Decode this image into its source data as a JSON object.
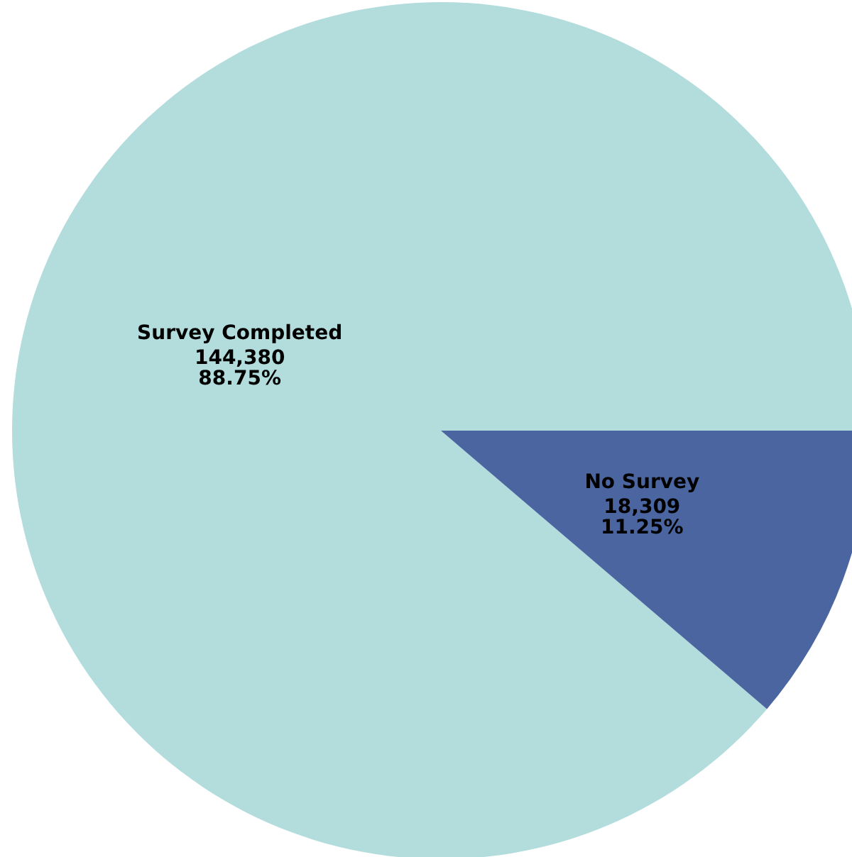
{
  "chart_data": {
    "type": "pie",
    "categories": [
      "Survey Completed",
      "No Survey"
    ],
    "values": [
      144380,
      18309
    ],
    "colors": [
      "#b3dcdd",
      "#4a65a0"
    ],
    "value_labels": [
      "144,380\n88.75%",
      "18,309\n11.25%"
    ],
    "legend": false
  }
}
